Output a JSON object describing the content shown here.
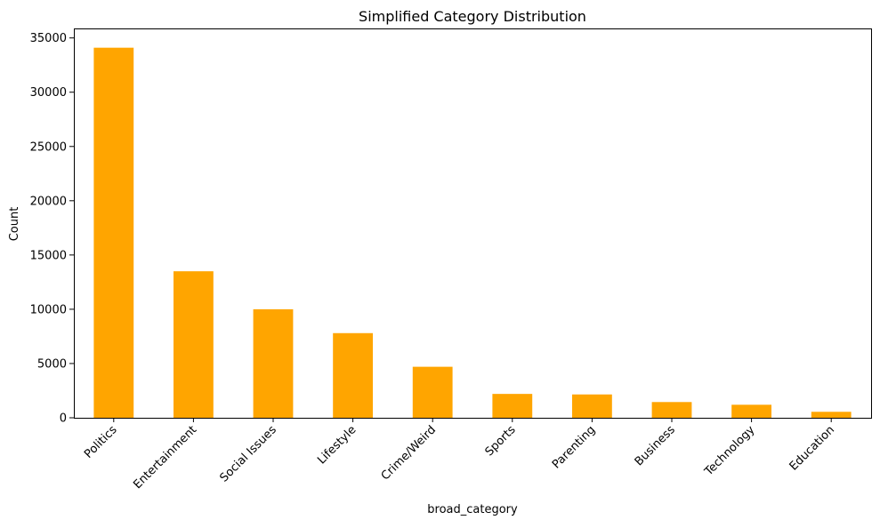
{
  "chart_data": {
    "type": "bar",
    "title": "Simplified Category Distribution",
    "xlabel": "broad_category",
    "ylabel": "Count",
    "categories": [
      "Politics",
      "Entertainment",
      "Social Issues",
      "Lifestyle",
      "Crime/Weird",
      "Sports",
      "Parenting",
      "Business",
      "Technology",
      "Education"
    ],
    "values": [
      34100,
      13500,
      10000,
      7800,
      4700,
      2200,
      2150,
      1450,
      1200,
      550
    ],
    "ylim": [
      0,
      35875
    ],
    "yticks": [
      0,
      5000,
      10000,
      15000,
      20000,
      25000,
      30000,
      35000
    ],
    "bar_color": "#ffa500",
    "grid": false,
    "legend": "none"
  }
}
